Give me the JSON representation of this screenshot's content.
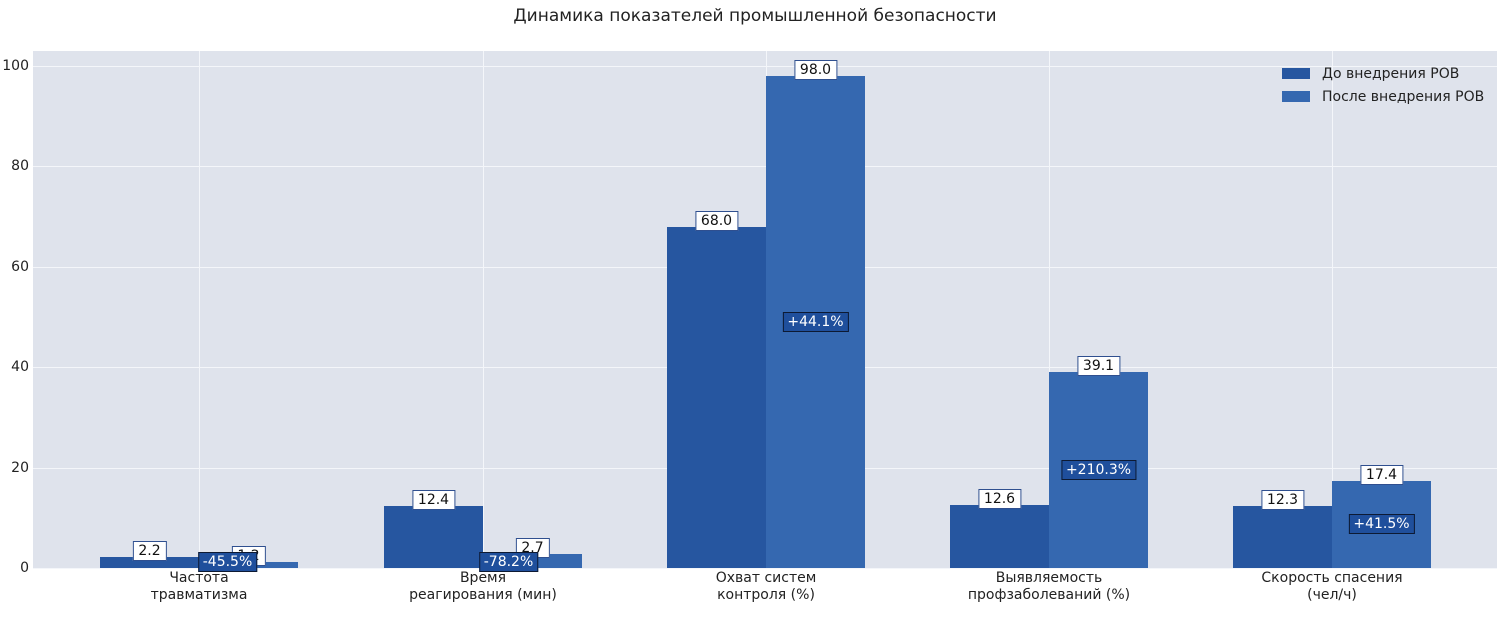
{
  "chart_data": {
    "type": "bar",
    "title": "Динамика показателей промышленной безопасности",
    "xlabel": "",
    "ylabel": "",
    "ylim": [
      0,
      103
    ],
    "yticks": [
      0,
      20,
      40,
      60,
      80,
      100
    ],
    "grid": true,
    "legend_position": "upper right",
    "categories": [
      "Частота\nтравматизма",
      "Время\nреагирования (мин)",
      "Охват систем\nконтроля (%)",
      "Выявляемость\nпрофзаболеваний (%)",
      "Скорость спасения\n(чел/ч)"
    ],
    "series": [
      {
        "name": "До внедрения РОВ",
        "color": "#2656a0",
        "values": [
          2.2,
          12.4,
          68.0,
          12.6,
          12.3
        ]
      },
      {
        "name": "После внедрения РОВ",
        "color": "#3568b0",
        "values": [
          1.2,
          2.7,
          98.0,
          39.1,
          17.4
        ]
      }
    ],
    "value_labels": {
      "before": [
        "2.2",
        "12.4",
        "68.0",
        "12.6",
        "12.3"
      ],
      "after": [
        "1.2",
        "2.7",
        "98.0",
        "39.1",
        "17.4"
      ]
    },
    "change_annotations": [
      "-45.5%",
      "-78.2%",
      "+44.1%",
      "+210.3%",
      "+41.5%"
    ]
  },
  "title": "Динамика показателей промышленной безопасности",
  "yticks": [
    "0",
    "20",
    "40",
    "60",
    "80",
    "100"
  ],
  "legend": {
    "before": "До внедрения РОВ",
    "after": "После внедрения РОВ"
  },
  "groups": [
    {
      "line1": "Частота",
      "line2": "травматизма",
      "before": "2.2",
      "after": "1.2",
      "change": "-45.5%"
    },
    {
      "line1": "Время",
      "line2": "реагирования (мин)",
      "before": "12.4",
      "after": "2.7",
      "change": "-78.2%"
    },
    {
      "line1": "Охват систем",
      "line2": "контроля (%)",
      "before": "68.0",
      "after": "98.0",
      "change": "+44.1%"
    },
    {
      "line1": "Выявляемость",
      "line2": "профзаболеваний (%)",
      "before": "12.6",
      "after": "39.1",
      "change": "+210.3%"
    },
    {
      "line1": "Скорость спасения",
      "line2": "(чел/ч)",
      "before": "12.3",
      "after": "17.4",
      "change": "+41.5%"
    }
  ]
}
